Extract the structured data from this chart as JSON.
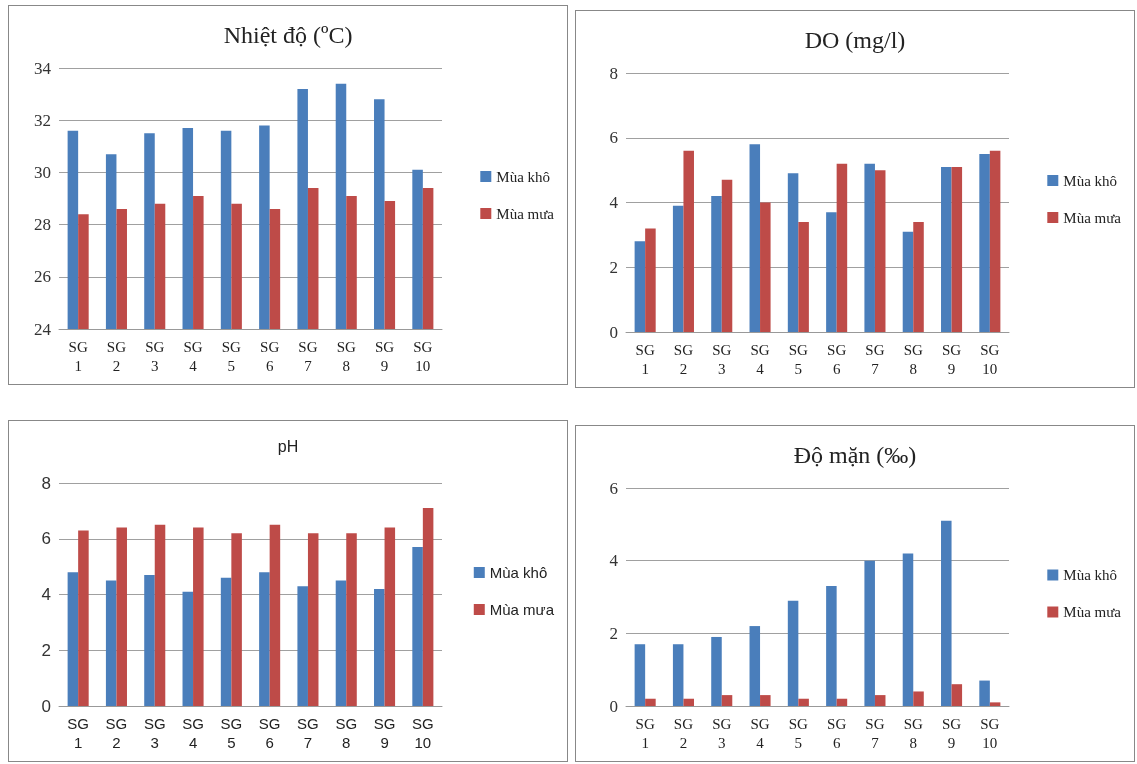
{
  "chart_data": [
    {
      "type": "bar",
      "title": "Nhiệt độ (ºC)",
      "categories": [
        "SG 1",
        "SG 2",
        "SG 3",
        "SG 4",
        "SG 5",
        "SG 6",
        "SG 7",
        "SG 8",
        "SG 9",
        "SG 10"
      ],
      "series": [
        {
          "name": "Mùa khô",
          "color": "#4a7ebb",
          "values": [
            31.6,
            30.7,
            31.5,
            31.7,
            31.6,
            31.8,
            33.2,
            33.4,
            32.8,
            30.1
          ]
        },
        {
          "name": "Mùa mưa",
          "color": "#be4b48",
          "values": [
            28.4,
            28.6,
            28.8,
            29.1,
            28.8,
            28.6,
            29.4,
            29.1,
            28.9,
            29.4
          ]
        }
      ],
      "ylim": [
        24,
        34
      ],
      "yticks": [
        24,
        26,
        28,
        30,
        32,
        34
      ],
      "grid": "y",
      "legend": "right"
    },
    {
      "type": "bar",
      "title": "DO (mg/l)",
      "categories": [
        "SG 1",
        "SG 2",
        "SG 3",
        "SG 4",
        "SG 5",
        "SG 6",
        "SG 7",
        "SG 8",
        "SG 9",
        "SG 10"
      ],
      "series": [
        {
          "name": "Mùa khô",
          "color": "#4a7ebb",
          "values": [
            2.8,
            3.9,
            4.2,
            5.8,
            4.9,
            3.7,
            5.2,
            3.1,
            5.1,
            5.5
          ]
        },
        {
          "name": "Mùa mưa",
          "color": "#be4b48",
          "values": [
            3.2,
            5.6,
            4.7,
            4.0,
            3.4,
            5.2,
            5.0,
            3.4,
            5.1,
            5.6
          ]
        }
      ],
      "ylim": [
        0,
        8
      ],
      "yticks": [
        0,
        2,
        4,
        6,
        8
      ],
      "grid": "y",
      "legend": "right"
    },
    {
      "type": "bar",
      "title": "pH",
      "categories": [
        "SG 1",
        "SG 2",
        "SG 3",
        "SG 4",
        "SG 5",
        "SG 6",
        "SG 7",
        "SG 8",
        "SG 9",
        "SG 10"
      ],
      "series": [
        {
          "name": "Mùa khô",
          "color": "#4a7ebb",
          "values": [
            4.8,
            4.5,
            4.7,
            4.1,
            4.6,
            4.8,
            4.3,
            4.5,
            4.2,
            5.7
          ]
        },
        {
          "name": "Mùa mưa",
          "color": "#be4b48",
          "values": [
            6.3,
            6.4,
            6.5,
            6.4,
            6.2,
            6.5,
            6.2,
            6.2,
            6.4,
            7.1
          ]
        }
      ],
      "ylim": [
        0,
        8
      ],
      "yticks": [
        0,
        2,
        4,
        6,
        8
      ],
      "grid": "y",
      "legend": "right"
    },
    {
      "type": "bar",
      "title": "Độ mặn (‰)",
      "categories": [
        "SG 1",
        "SG 2",
        "SG 3",
        "SG 4",
        "SG 5",
        "SG 6",
        "SG 7",
        "SG 8",
        "SG 9",
        "SG 10"
      ],
      "series": [
        {
          "name": "Mùa khô",
          "color": "#4a7ebb",
          "values": [
            1.7,
            1.7,
            1.9,
            2.2,
            2.9,
            3.3,
            4.0,
            4.2,
            5.1,
            0.7
          ]
        },
        {
          "name": "Mùa mưa",
          "color": "#be4b48",
          "values": [
            0.2,
            0.2,
            0.3,
            0.3,
            0.2,
            0.2,
            0.3,
            0.4,
            0.6,
            0.1
          ]
        }
      ],
      "ylim": [
        0,
        6
      ],
      "yticks": [
        0,
        2,
        4,
        6
      ],
      "grid": "y",
      "legend": "right"
    }
  ]
}
